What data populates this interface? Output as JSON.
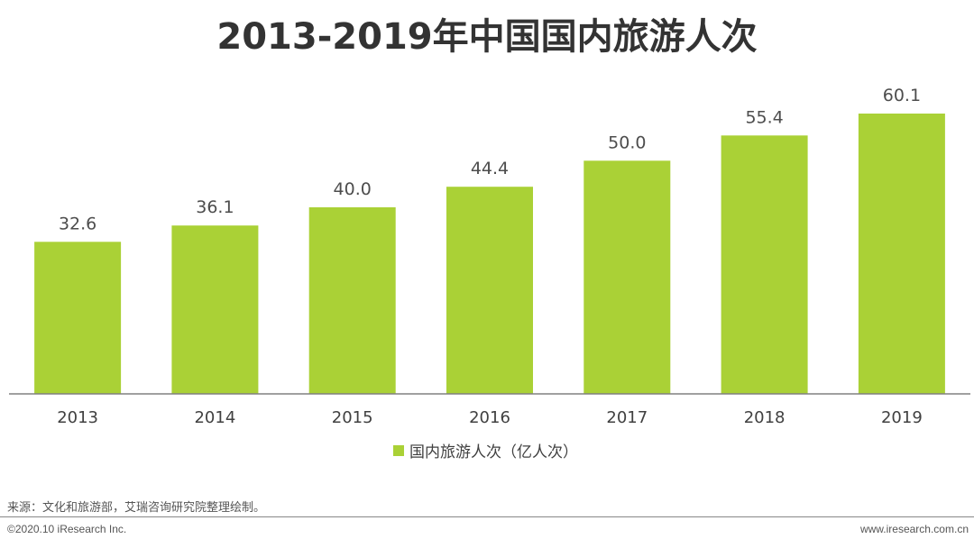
{
  "title": "2013-2019年中国国内旅游人次",
  "legend_label": "国内旅游人次（亿人次）",
  "source": "来源：文化和旅游部，艾瑞咨询研究院整理绘制。",
  "footer": {
    "copyright": "©2020.10 iResearch Inc.",
    "website": "www.iresearch.com.cn"
  },
  "colors": {
    "bar": "#aad136",
    "axis": "#808080"
  },
  "chart_data": {
    "type": "bar",
    "title": "2013-2019年中国国内旅游人次",
    "categories": [
      "2013",
      "2014",
      "2015",
      "2016",
      "2017",
      "2018",
      "2019"
    ],
    "series": [
      {
        "name": "国内旅游人次（亿人次）",
        "values": [
          32.6,
          36.1,
          40.0,
          44.4,
          50.0,
          55.4,
          60.1
        ],
        "labels": [
          "32.6",
          "36.1",
          "40.0",
          "44.4",
          "50.0",
          "55.4",
          "60.1"
        ]
      }
    ],
    "xlabel": "",
    "ylabel": "",
    "ylim": [
      0,
      60.1
    ],
    "grid": false,
    "legend_position": "bottom"
  }
}
